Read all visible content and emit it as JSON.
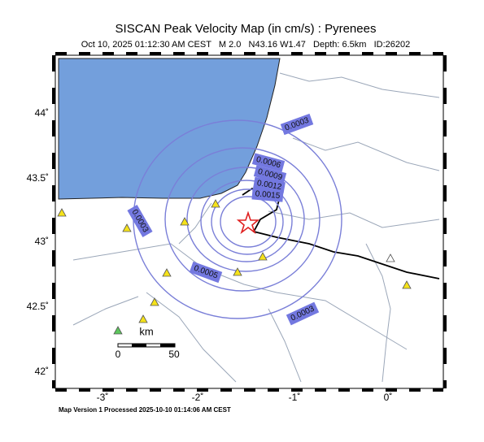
{
  "header": {
    "title": "SISCAN Peak Velocity Map (in cm/s) : Pyrenees",
    "subtitle": "Oct 10, 2025 01:12:30 AM CEST   M 2.0   N43.16 W1.47   Depth: 6.5km   ID:26202"
  },
  "axes": {
    "latitude": [
      "44˚",
      "43.5˚",
      "43˚",
      "42.5˚",
      "42˚"
    ],
    "longitude": [
      "-3˚",
      "-2˚",
      "-1˚",
      "0˚"
    ]
  },
  "contours": [
    {
      "label": "0.0003"
    },
    {
      "label": "0.0006"
    },
    {
      "label": "0.0009"
    },
    {
      "label": "0.0012"
    },
    {
      "label": "0.0015"
    },
    {
      "label": "0.0003"
    },
    {
      "label": "0.0005"
    },
    {
      "label": "0.0003"
    }
  ],
  "scale": {
    "unit": "km",
    "ticks": [
      "0",
      "50"
    ]
  },
  "footer": "Map Version 1 Processed 2025-10-10 01:14:06 AM CEST"
}
